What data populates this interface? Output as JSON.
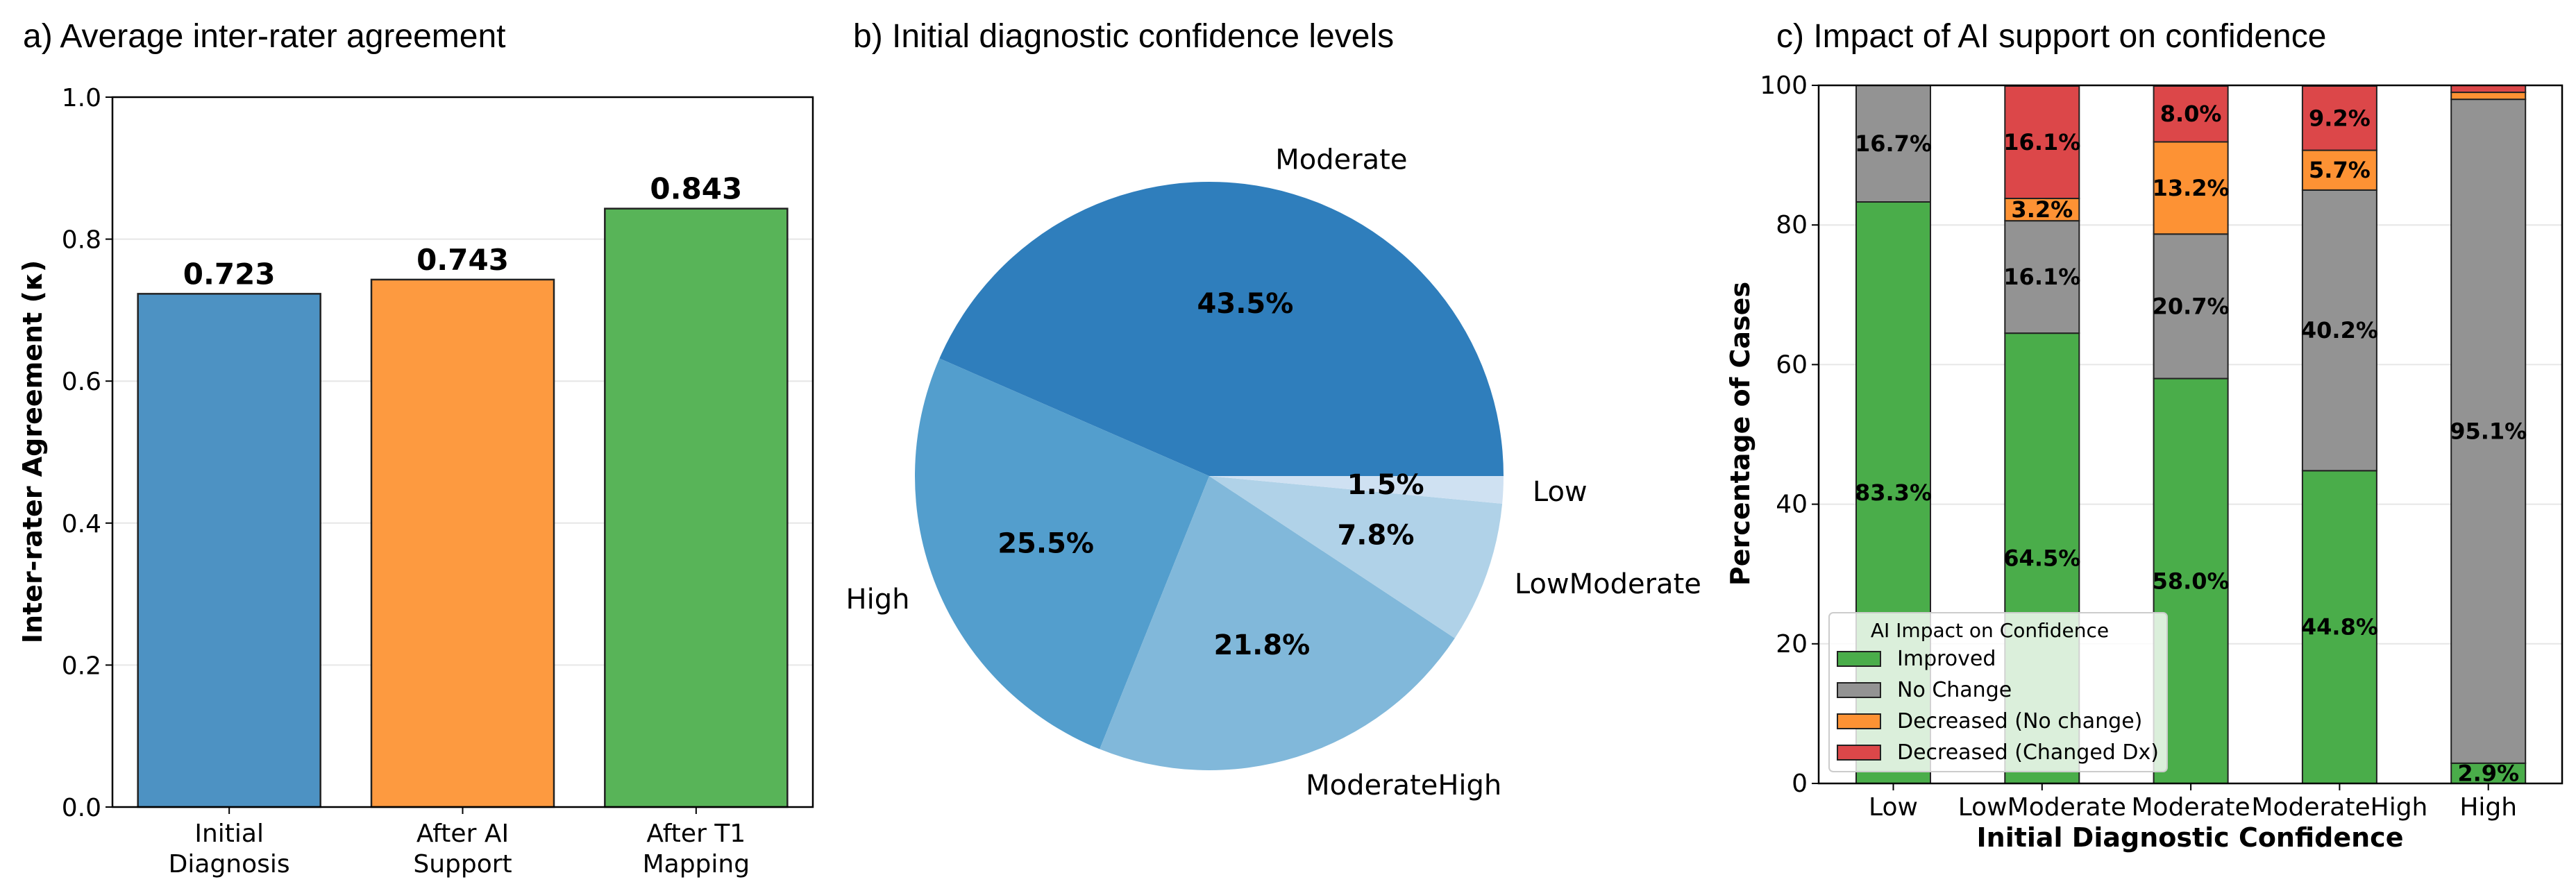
{
  "chart_data": [
    {
      "type": "bar",
      "title": "a) Average inter-rater agreement",
      "xlabel": "",
      "ylabel": "Inter-rater Agreement (κ)",
      "ylim": [
        0,
        1.0
      ],
      "yticks": [
        "0.0",
        "0.2",
        "0.4",
        "0.6",
        "0.8",
        "1.0"
      ],
      "ytick_values": [
        0,
        0.2,
        0.4,
        0.6,
        0.8,
        1.0
      ],
      "grid": "y",
      "categories": [
        "Initial\nDiagnosis",
        "After AI\nSupport",
        "After T1\nMapping"
      ],
      "values": [
        0.723,
        0.743,
        0.843
      ],
      "value_labels": [
        "0.723",
        "0.743",
        "0.843"
      ],
      "colors": [
        "#4d92c3",
        "#fd9a40",
        "#58b458"
      ]
    },
    {
      "type": "pie",
      "title": "b) Initial diagnostic confidence levels",
      "labels": [
        "Moderate",
        "High",
        "ModerateHigh",
        "LowModerate",
        "Low"
      ],
      "values": [
        43.5,
        25.5,
        21.8,
        7.8,
        1.5
      ],
      "pct_labels": [
        "43.5%",
        "25.5%",
        "21.8%",
        "7.8%",
        "1.5%"
      ],
      "colors": [
        "#2f7ebc",
        "#539ecd",
        "#81b8da",
        "#b0d2e8",
        "#cfe1f2"
      ],
      "start_angle": 0,
      "direction": "counterclockwise"
    },
    {
      "type": "bar",
      "stacked": true,
      "title": "c) Impact of AI support on confidence",
      "xlabel": "Initial Diagnostic Confidence",
      "ylabel": "Percentage of Cases",
      "ylim": [
        0,
        100
      ],
      "yticks": [
        "0",
        "20",
        "40",
        "60",
        "80",
        "100"
      ],
      "ytick_values": [
        0,
        20,
        40,
        60,
        80,
        100
      ],
      "grid": "y",
      "categories": [
        "Low",
        "LowModerate",
        "Moderate",
        "ModerateHigh",
        "High"
      ],
      "series": [
        {
          "name": "Improved",
          "color": "#4aad4a",
          "values": [
            83.3,
            64.5,
            58.0,
            44.8,
            2.9
          ],
          "labels": [
            "83.3%",
            "64.5%",
            "58.0%",
            "44.8%",
            "2.9%"
          ]
        },
        {
          "name": "No Change",
          "color": "#939393",
          "values": [
            16.7,
            16.1,
            20.7,
            40.2,
            95.1
          ],
          "labels": [
            "16.7%",
            "16.1%",
            "20.7%",
            "40.2%",
            "95.1%"
          ]
        },
        {
          "name": "Decreased (No change)",
          "color": "#fd9234",
          "values": [
            0,
            3.2,
            13.2,
            5.7,
            1.0
          ],
          "labels": [
            "",
            "3.2%",
            "13.2%",
            "5.7%",
            ""
          ]
        },
        {
          "name": "Decreased (Changed Dx)",
          "color": "#dc4749",
          "values": [
            0,
            16.1,
            8.0,
            9.2,
            1.0
          ],
          "labels": [
            "",
            "16.1%",
            "8.0%",
            "9.2%",
            ""
          ]
        }
      ],
      "legend": {
        "title": "AI Impact on Confidence",
        "placement": "lower-left"
      }
    }
  ]
}
